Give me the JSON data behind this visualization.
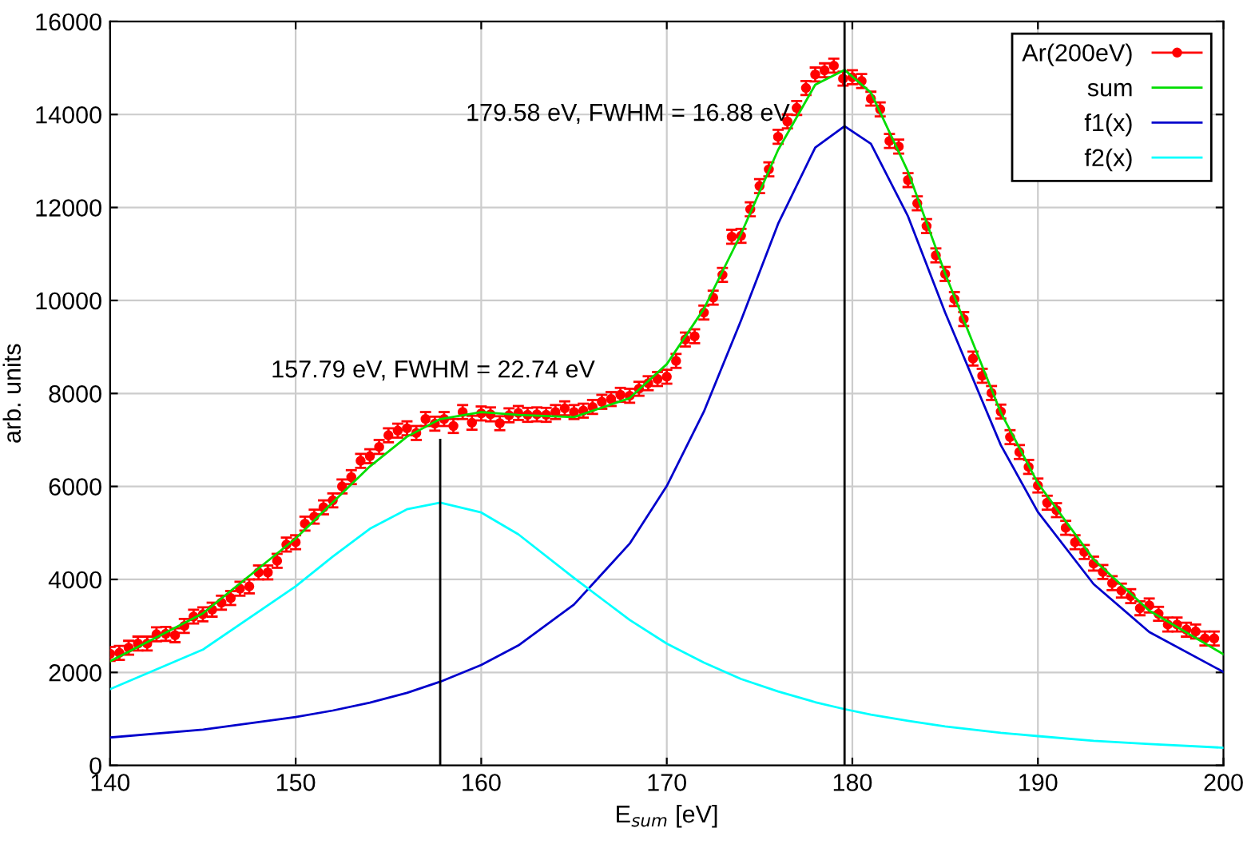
{
  "chart_data": {
    "type": "line",
    "xlabel": "E$_{sum}$ [eV]",
    "ylabel": "arb. units",
    "xlim": [
      140,
      200
    ],
    "xticks": [
      140,
      150,
      160,
      170,
      180,
      190,
      200
    ],
    "ylim": [
      0,
      16000
    ],
    "yticks": [
      0,
      2000,
      4000,
      6000,
      8000,
      10000,
      12000,
      14000,
      16000
    ],
    "grid": true,
    "legend": "top right",
    "annotations": [
      "157.79 eV, FWHM = 22.74 eV",
      "179.58 eV, FWHM = 16.88 eV"
    ],
    "series": [
      {
        "name": "Ar(200eV)",
        "type": "scatter",
        "marker": "circle",
        "color": "#ff0000",
        "x": [
          140,
          140.5,
          141,
          141.5,
          142,
          142.5,
          143,
          143.5,
          144,
          144.5,
          145,
          145.5,
          146,
          146.5,
          147,
          147.5,
          148,
          148.5,
          149,
          149.5,
          150,
          150.5,
          151,
          151.5,
          152,
          152.5,
          153,
          153.5,
          154,
          154.5,
          155,
          155.5,
          156,
          156.5,
          157,
          157.5,
          158,
          158.5,
          159,
          159.5,
          160,
          160.5,
          161,
          161.5,
          162,
          162.5,
          163,
          163.5,
          164,
          164.5,
          165,
          165.5,
          166,
          166.5,
          167,
          167.5,
          168,
          168.5,
          169,
          169.5,
          170,
          170.5,
          171,
          171.5,
          172,
          172.5,
          173,
          173.5,
          174,
          174.5,
          175,
          175.5,
          176,
          176.5,
          177,
          177.5,
          178,
          178.5,
          179,
          179.5,
          180,
          180.5,
          181,
          181.5,
          182,
          182.5,
          183,
          183.5,
          184,
          184.5,
          185,
          185.5,
          186,
          186.5,
          187,
          187.5,
          188,
          188.5,
          189,
          189.5,
          190,
          190.5,
          191,
          191.5,
          192,
          192.5,
          193,
          193.5,
          194,
          194.5,
          195,
          195.5,
          196,
          196.5,
          197,
          197.5,
          198,
          198.5,
          199,
          199.5
        ],
        "values": [
          2400,
          2420,
          2530,
          2620,
          2620,
          2820,
          2830,
          2800,
          3000,
          3200,
          3250,
          3350,
          3500,
          3600,
          3800,
          3850,
          4150,
          4150,
          4400,
          4750,
          4800,
          5200,
          5350,
          5550,
          5700,
          6000,
          6200,
          6550,
          6650,
          6850,
          7100,
          7200,
          7250,
          7150,
          7450,
          7350,
          7450,
          7300,
          7600,
          7370,
          7570,
          7550,
          7360,
          7530,
          7580,
          7540,
          7550,
          7540,
          7600,
          7680,
          7600,
          7630,
          7710,
          7820,
          7880,
          7970,
          7950,
          8100,
          8220,
          8310,
          8360,
          8700,
          9160,
          9230,
          9740,
          10060,
          10550,
          11370,
          11390,
          11960,
          12460,
          12820,
          13520,
          13850,
          14140,
          14570,
          14860,
          14950,
          15050,
          14770,
          14800,
          14720,
          14340,
          14110,
          13430,
          13310,
          12590,
          12090,
          11600,
          10970,
          10570,
          10030,
          9600,
          8750,
          8380,
          8010,
          7610,
          7060,
          6740,
          6420,
          6020,
          5650,
          5490,
          5110,
          4800,
          4590,
          4340,
          4160,
          3920,
          3760,
          3640,
          3380,
          3440,
          3260,
          3030,
          3030,
          2920,
          2880,
          2730,
          2730
        ],
        "errors": [
          150,
          150,
          150,
          150,
          150,
          150,
          150,
          150,
          150,
          150,
          150,
          150,
          150,
          150,
          150,
          150,
          150,
          150,
          150,
          150,
          150,
          150,
          150,
          150,
          150,
          150,
          150,
          150,
          150,
          150,
          150,
          150,
          150,
          150,
          150,
          150,
          150,
          150,
          150,
          150,
          150,
          150,
          150,
          150,
          150,
          150,
          150,
          150,
          150,
          150,
          150,
          150,
          150,
          150,
          150,
          150,
          150,
          150,
          150,
          150,
          150,
          150,
          150,
          150,
          150,
          150,
          150,
          150,
          150,
          150,
          150,
          150,
          150,
          150,
          150,
          150,
          150,
          150,
          150,
          150,
          150,
          150,
          150,
          150,
          150,
          150,
          150,
          150,
          150,
          150,
          150,
          150,
          150,
          150,
          150,
          150,
          150,
          150,
          150,
          150,
          150,
          150,
          150,
          150,
          150,
          150,
          150,
          150,
          150,
          150,
          150,
          150,
          150,
          150,
          150,
          150,
          150,
          150,
          150,
          150
        ]
      },
      {
        "name": "sum",
        "color": "#00dd00",
        "x": [
          140,
          145,
          150,
          152,
          154,
          156,
          157.79,
          160,
          162,
          165,
          168,
          170,
          172,
          174,
          176,
          178,
          179.58,
          181,
          183,
          185,
          188,
          190,
          193,
          196,
          200
        ],
        "values": [
          2240,
          3270,
          4880,
          5660,
          6430,
          7070,
          7450,
          7600,
          7540,
          7490,
          7900,
          8630,
          9820,
          11430,
          13240,
          14640,
          14960,
          14470,
          12770,
          10580,
          7590,
          6070,
          4430,
          3330,
          2390
        ]
      },
      {
        "name": "f1(x)",
        "color": "#0000cc",
        "x": [
          140,
          145,
          150,
          152,
          154,
          156,
          157.79,
          160,
          162,
          165,
          168,
          170,
          172,
          174,
          176,
          178,
          179.58,
          181,
          183,
          185,
          188,
          190,
          193,
          196,
          200
        ],
        "values": [
          600,
          770,
          1040,
          1180,
          1350,
          1560,
          1800,
          2160,
          2580,
          3460,
          4770,
          6010,
          7610,
          9570,
          11650,
          13290,
          13750,
          13370,
          11810,
          9740,
          6890,
          5450,
          3900,
          2870,
          2010
        ]
      },
      {
        "name": "f2(x)",
        "color": "#00ffff",
        "x": [
          140,
          145,
          150,
          152,
          154,
          156,
          157.79,
          160,
          162,
          165,
          168,
          170,
          172,
          174,
          176,
          178,
          179.58,
          181,
          183,
          185,
          188,
          190,
          193,
          196,
          200
        ],
        "values": [
          1640,
          2490,
          3850,
          4490,
          5090,
          5510,
          5650,
          5440,
          4970,
          4030,
          3130,
          2620,
          2210,
          1860,
          1590,
          1360,
          1210,
          1090,
          960,
          840,
          700,
          630,
          530,
          460,
          380
        ]
      },
      {
        "color": "#000000",
        "x": [
          157.79,
          157.79
        ],
        "values": [
          0,
          7000
        ]
      },
      {
        "color": "#000000",
        "x": [
          179.58,
          179.58
        ],
        "values": [
          0,
          16000
        ]
      }
    ]
  }
}
